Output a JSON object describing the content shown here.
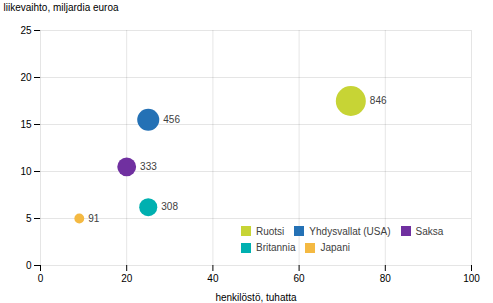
{
  "chart_data": {
    "type": "bubble",
    "ylabel": "liikevaihto, miljardia euroa",
    "xlabel": "henkilöstö, tuhatta",
    "xlim": [
      0,
      100
    ],
    "ylim": [
      0,
      25
    ],
    "xticks": [
      0,
      20,
      40,
      60,
      80,
      100
    ],
    "yticks": [
      0,
      5,
      10,
      15,
      20,
      25
    ],
    "grid": true,
    "legend": "lower right",
    "data_labels": true,
    "series": [
      {
        "name": "Ruotsi",
        "color": "#c7d435",
        "x": 72,
        "y": 17.5,
        "size": 846
      },
      {
        "name": "Yhdysvallat (USA)",
        "color": "#2471b5",
        "x": 25,
        "y": 15.5,
        "size": 456
      },
      {
        "name": "Saksa",
        "color": "#7030a0",
        "x": 20,
        "y": 10.5,
        "size": 333
      },
      {
        "name": "Britannia",
        "color": "#00b0b0",
        "x": 25,
        "y": 6.2,
        "size": 308
      },
      {
        "name": "Japani",
        "color": "#f4b942",
        "x": 9,
        "y": 5.0,
        "size": 91
      }
    ]
  }
}
